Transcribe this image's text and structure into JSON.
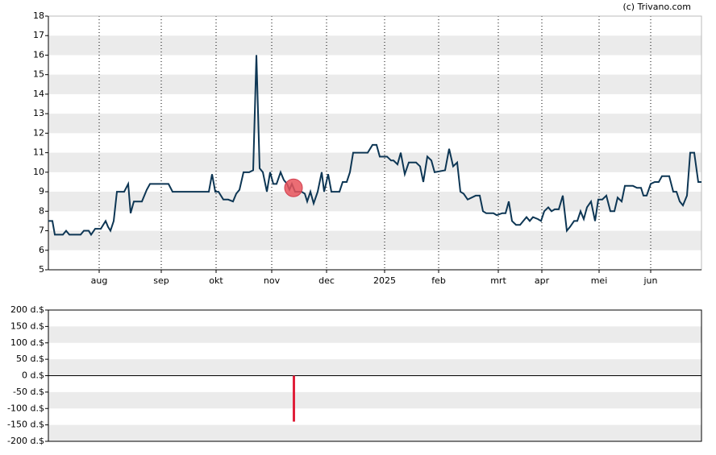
{
  "attribution": "(c) Trivano.com",
  "chart_data": [
    {
      "type": "line",
      "color": "#0d3654",
      "xlim": [
        0,
        810
      ],
      "ylim": [
        5,
        18
      ],
      "yticks": [
        5,
        6,
        7,
        8,
        9,
        10,
        11,
        12,
        13,
        14,
        15,
        16,
        17,
        18
      ],
      "xticks": [
        {
          "value": 63,
          "label": "aug"
        },
        {
          "value": 140,
          "label": "sep"
        },
        {
          "value": 208,
          "label": "okt"
        },
        {
          "value": 277,
          "label": "nov"
        },
        {
          "value": 345,
          "label": "dec"
        },
        {
          "value": 417,
          "label": "2025"
        },
        {
          "value": 484,
          "label": "feb"
        },
        {
          "value": 558,
          "label": "mrt"
        },
        {
          "value": 612,
          "label": "apr"
        },
        {
          "value": 683,
          "label": "mei"
        },
        {
          "value": 747,
          "label": "jun"
        }
      ],
      "x": [
        0,
        5,
        8,
        18,
        22,
        26,
        40,
        44,
        50,
        53,
        58,
        65,
        71,
        74,
        77,
        81,
        85,
        94,
        99,
        102,
        106,
        116,
        122,
        126,
        149,
        154,
        199,
        203,
        207,
        211,
        217,
        223,
        229,
        233,
        237,
        242,
        249,
        254,
        258,
        262,
        266,
        271,
        275,
        279,
        283,
        288,
        292,
        296,
        299,
        302,
        306,
        314,
        318,
        321,
        325,
        329,
        334,
        339,
        342,
        347,
        351,
        361,
        365,
        370,
        374,
        378,
        386,
        396,
        402,
        407,
        411,
        420,
        425,
        428,
        433,
        437,
        442,
        447,
        456,
        461,
        465,
        470,
        475,
        479,
        492,
        497,
        502,
        507,
        511,
        515,
        520,
        530,
        535,
        539,
        543,
        552,
        556,
        563,
        567,
        571,
        575,
        580,
        585,
        589,
        593,
        597,
        601,
        607,
        611,
        615,
        620,
        624,
        628,
        633,
        638,
        643,
        647,
        652,
        656,
        660,
        664,
        668,
        673,
        678,
        682,
        687,
        692,
        697,
        702,
        706,
        711,
        715,
        725,
        730,
        735,
        738,
        742,
        747,
        752,
        757,
        761,
        770,
        775,
        779,
        783,
        787,
        792,
        796,
        801,
        806,
        810
      ],
      "values": [
        7.5,
        7.5,
        6.8,
        6.8,
        7,
        6.8,
        6.8,
        7,
        7,
        6.8,
        7.1,
        7.1,
        7.5,
        7.2,
        7,
        7.5,
        9,
        9,
        9.4,
        7.9,
        8.5,
        8.5,
        9.1,
        9.4,
        9.4,
        9,
        9,
        9.9,
        9,
        9,
        8.6,
        8.6,
        8.5,
        8.9,
        9.1,
        10,
        10,
        10.1,
        16,
        10.2,
        10,
        9,
        10,
        9.4,
        9.4,
        10,
        9.6,
        9.4,
        9.1,
        9.4,
        9,
        9,
        8.9,
        8.5,
        9,
        8.4,
        9,
        10,
        9,
        9.9,
        9,
        9,
        9.5,
        9.5,
        10,
        11,
        11,
        11,
        11.4,
        11.4,
        10.8,
        10.8,
        10.6,
        10.6,
        10.4,
        11,
        9.9,
        10.5,
        10.5,
        10.3,
        9.5,
        10.8,
        10.6,
        10,
        10.1,
        11.2,
        10.3,
        10.5,
        9,
        8.9,
        8.6,
        8.8,
        8.8,
        8,
        7.9,
        7.9,
        7.8,
        7.9,
        7.9,
        8.5,
        7.5,
        7.3,
        7.3,
        7.5,
        7.7,
        7.5,
        7.7,
        7.6,
        7.5,
        8,
        8.2,
        8,
        8.1,
        8.1,
        8.8,
        7,
        7.2,
        7.5,
        7.5,
        8,
        7.6,
        8.2,
        8.5,
        7.5,
        8.6,
        8.6,
        8.8,
        8,
        8,
        8.7,
        8.5,
        9.3,
        9.3,
        9.2,
        9.2,
        8.8,
        8.8,
        9.4,
        9.5,
        9.5,
        9.8,
        9.8,
        9,
        9,
        8.5,
        8.3,
        8.8,
        11,
        11,
        9.5,
        9.5
      ],
      "marker": {
        "x": 304,
        "y": 9.2,
        "color": "#e8545c"
      }
    },
    {
      "type": "bar",
      "color": "#e0203a",
      "xlim": [
        0,
        810
      ],
      "ylim": [
        -200,
        200
      ],
      "yticks": [
        {
          "value": 200,
          "label": "200 d.$"
        },
        {
          "value": 150,
          "label": "150 d.$"
        },
        {
          "value": 100,
          "label": "100 d.$"
        },
        {
          "value": 50,
          "label": "50 d.$"
        },
        {
          "value": 0,
          "label": "0 d.$"
        },
        {
          "value": -50,
          "label": "-50 d.$"
        },
        {
          "value": -100,
          "label": "-100 d.$"
        },
        {
          "value": -150,
          "label": "-150 d.$"
        },
        {
          "value": -200,
          "label": "-200 d.$"
        }
      ],
      "x": [
        304
      ],
      "values": [
        -140
      ]
    }
  ]
}
